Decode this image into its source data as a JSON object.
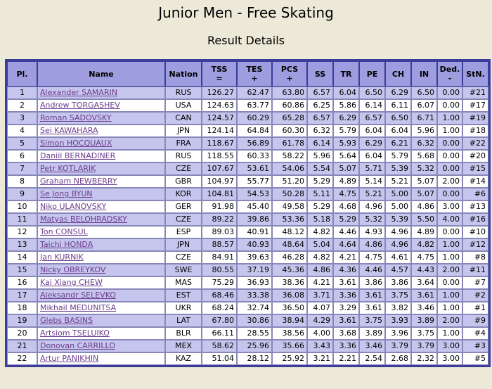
{
  "title": "Junior Men - Free Skating",
  "subtitle": "Result Details",
  "headers": {
    "pl": "Pl.",
    "name": "Name",
    "nation": "Nation",
    "tss": "TSS",
    "tss_sub": "=",
    "tes": "TES",
    "tes_sub": "+",
    "pcs": "PCS",
    "pcs_sub": "+",
    "ss": "SS",
    "tr": "TR",
    "pe": "PE",
    "ch": "CH",
    "in": "IN",
    "ded": "Ded.",
    "ded_sub": "-",
    "stn": "StN."
  },
  "rows": [
    {
      "pl": "1",
      "name": "Alexander SAMARIN",
      "nation": "RUS",
      "tss": "126.27",
      "tes": "62.47",
      "pcs": "63.80",
      "ss": "6.57",
      "tr": "6.04",
      "pe": "6.50",
      "ch": "6.29",
      "in": "6.50",
      "ded": "0.00",
      "stn": "#21"
    },
    {
      "pl": "2",
      "name": "Andrew TORGASHEV",
      "nation": "USA",
      "tss": "124.63",
      "tes": "63.77",
      "pcs": "60.86",
      "ss": "6.25",
      "tr": "5.86",
      "pe": "6.14",
      "ch": "6.11",
      "in": "6.07",
      "ded": "0.00",
      "stn": "#17"
    },
    {
      "pl": "3",
      "name": "Roman SADOVSKY",
      "nation": "CAN",
      "tss": "124.57",
      "tes": "60.29",
      "pcs": "65.28",
      "ss": "6.57",
      "tr": "6.29",
      "pe": "6.57",
      "ch": "6.50",
      "in": "6.71",
      "ded": "1.00",
      "stn": "#19"
    },
    {
      "pl": "4",
      "name": "Sei KAWAHARA",
      "nation": "JPN",
      "tss": "124.14",
      "tes": "64.84",
      "pcs": "60.30",
      "ss": "6.32",
      "tr": "5.79",
      "pe": "6.04",
      "ch": "6.04",
      "in": "5.96",
      "ded": "1.00",
      "stn": "#18"
    },
    {
      "pl": "5",
      "name": "Simon HOCQUAUX",
      "nation": "FRA",
      "tss": "118.67",
      "tes": "56.89",
      "pcs": "61.78",
      "ss": "6.14",
      "tr": "5.93",
      "pe": "6.29",
      "ch": "6.21",
      "in": "6.32",
      "ded": "0.00",
      "stn": "#22"
    },
    {
      "pl": "6",
      "name": "Daniil BERNADINER",
      "nation": "RUS",
      "tss": "118.55",
      "tes": "60.33",
      "pcs": "58.22",
      "ss": "5.96",
      "tr": "5.64",
      "pe": "6.04",
      "ch": "5.79",
      "in": "5.68",
      "ded": "0.00",
      "stn": "#20"
    },
    {
      "pl": "7",
      "name": "Petr KOTLARIK",
      "nation": "CZE",
      "tss": "107.67",
      "tes": "53.61",
      "pcs": "54.06",
      "ss": "5.54",
      "tr": "5.07",
      "pe": "5.71",
      "ch": "5.39",
      "in": "5.32",
      "ded": "0.00",
      "stn": "#15"
    },
    {
      "pl": "8",
      "name": "Graham NEWBERRY",
      "nation": "GBR",
      "tss": "104.97",
      "tes": "55.77",
      "pcs": "51.20",
      "ss": "5.29",
      "tr": "4.89",
      "pe": "5.14",
      "ch": "5.21",
      "in": "5.07",
      "ded": "2.00",
      "stn": "#14"
    },
    {
      "pl": "9",
      "name": "Se Jong BYUN",
      "nation": "KOR",
      "tss": "104.81",
      "tes": "54.53",
      "pcs": "50.28",
      "ss": "5.11",
      "tr": "4.75",
      "pe": "5.21",
      "ch": "5.00",
      "in": "5.07",
      "ded": "0.00",
      "stn": "#6"
    },
    {
      "pl": "10",
      "name": "Niko ULANOVSKY",
      "nation": "GER",
      "tss": "91.98",
      "tes": "45.40",
      "pcs": "49.58",
      "ss": "5.29",
      "tr": "4.68",
      "pe": "4.96",
      "ch": "5.00",
      "in": "4.86",
      "ded": "3.00",
      "stn": "#13"
    },
    {
      "pl": "11",
      "name": "Matyas BELOHRADSKY",
      "nation": "CZE",
      "tss": "89.22",
      "tes": "39.86",
      "pcs": "53.36",
      "ss": "5.18",
      "tr": "5.29",
      "pe": "5.32",
      "ch": "5.39",
      "in": "5.50",
      "ded": "4.00",
      "stn": "#16"
    },
    {
      "pl": "12",
      "name": "Ton CONSUL",
      "nation": "ESP",
      "tss": "89.03",
      "tes": "40.91",
      "pcs": "48.12",
      "ss": "4.82",
      "tr": "4.46",
      "pe": "4.93",
      "ch": "4.96",
      "in": "4.89",
      "ded": "0.00",
      "stn": "#10"
    },
    {
      "pl": "13",
      "name": "Taichi HONDA",
      "nation": "JPN",
      "tss": "88.57",
      "tes": "40.93",
      "pcs": "48.64",
      "ss": "5.04",
      "tr": "4.64",
      "pe": "4.86",
      "ch": "4.96",
      "in": "4.82",
      "ded": "1.00",
      "stn": "#12"
    },
    {
      "pl": "14",
      "name": "Jan KURNIK",
      "nation": "CZE",
      "tss": "84.91",
      "tes": "39.63",
      "pcs": "46.28",
      "ss": "4.82",
      "tr": "4.21",
      "pe": "4.75",
      "ch": "4.61",
      "in": "4.75",
      "ded": "1.00",
      "stn": "#8"
    },
    {
      "pl": "15",
      "name": "Nicky OBREYKOV",
      "nation": "SWE",
      "tss": "80.55",
      "tes": "37.19",
      "pcs": "45.36",
      "ss": "4.86",
      "tr": "4.36",
      "pe": "4.46",
      "ch": "4.57",
      "in": "4.43",
      "ded": "2.00",
      "stn": "#11"
    },
    {
      "pl": "16",
      "name": "Kai Xiang CHEW",
      "nation": "MAS",
      "tss": "75.29",
      "tes": "36.93",
      "pcs": "38.36",
      "ss": "4.21",
      "tr": "3.61",
      "pe": "3.86",
      "ch": "3.86",
      "in": "3.64",
      "ded": "0.00",
      "stn": "#7"
    },
    {
      "pl": "17",
      "name": "Aleksandr SELEVKO",
      "nation": "EST",
      "tss": "68.46",
      "tes": "33.38",
      "pcs": "36.08",
      "ss": "3.71",
      "tr": "3.36",
      "pe": "3.61",
      "ch": "3.75",
      "in": "3.61",
      "ded": "1.00",
      "stn": "#2"
    },
    {
      "pl": "18",
      "name": "Mikhail MEDUNITSA",
      "nation": "UKR",
      "tss": "68.24",
      "tes": "32.74",
      "pcs": "36.50",
      "ss": "4.07",
      "tr": "3.29",
      "pe": "3.61",
      "ch": "3.82",
      "in": "3.46",
      "ded": "1.00",
      "stn": "#1"
    },
    {
      "pl": "19",
      "name": "Glebs BASINS",
      "nation": "LAT",
      "tss": "67.80",
      "tes": "30.86",
      "pcs": "38.94",
      "ss": "4.29",
      "tr": "3.61",
      "pe": "3.75",
      "ch": "3.93",
      "in": "3.89",
      "ded": "2.00",
      "stn": "#9"
    },
    {
      "pl": "20",
      "name": "Artsiom TSELUIKO",
      "nation": "BLR",
      "tss": "66.11",
      "tes": "28.55",
      "pcs": "38.56",
      "ss": "4.00",
      "tr": "3.68",
      "pe": "3.89",
      "ch": "3.96",
      "in": "3.75",
      "ded": "1.00",
      "stn": "#4"
    },
    {
      "pl": "21",
      "name": "Donovan CARRILLO",
      "nation": "MEX",
      "tss": "58.62",
      "tes": "25.96",
      "pcs": "35.66",
      "ss": "3.43",
      "tr": "3.36",
      "pe": "3.46",
      "ch": "3.79",
      "in": "3.79",
      "ded": "3.00",
      "stn": "#3"
    },
    {
      "pl": "22",
      "name": "Artur PANIKHIN",
      "nation": "KAZ",
      "tss": "51.04",
      "tes": "28.12",
      "pcs": "25.92",
      "ss": "3.21",
      "tr": "2.21",
      "pe": "2.54",
      "ch": "2.68",
      "in": "2.32",
      "ded": "3.00",
      "stn": "#5"
    }
  ]
}
